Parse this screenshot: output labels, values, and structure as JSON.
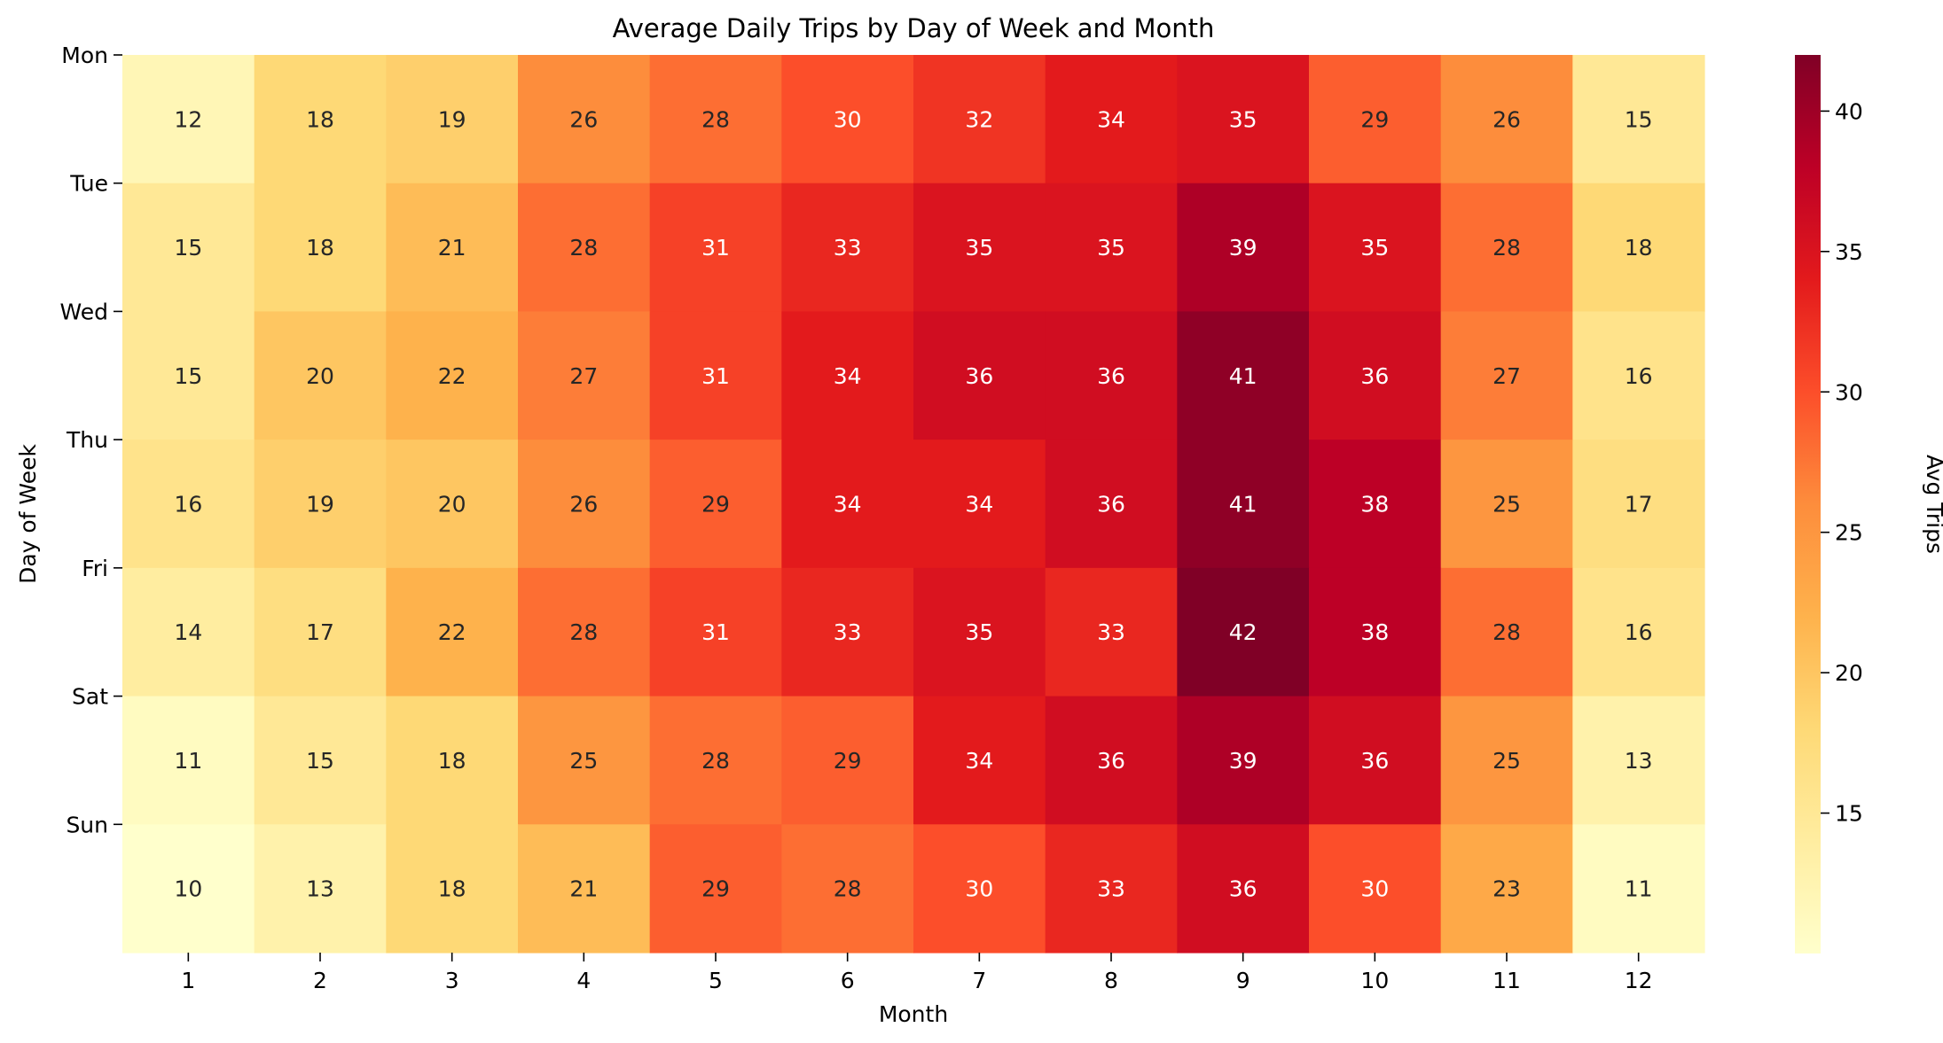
{
  "chart_data": {
    "type": "heatmap",
    "title": "Average Daily Trips by Day of Week and Month",
    "xlabel": "Month",
    "ylabel": "Day of Week",
    "x": [
      "1",
      "2",
      "3",
      "4",
      "5",
      "6",
      "7",
      "8",
      "9",
      "10",
      "11",
      "12"
    ],
    "y": [
      "Mon",
      "Tue",
      "Wed",
      "Thu",
      "Fri",
      "Sat",
      "Sun"
    ],
    "values": [
      [
        12,
        18,
        19,
        26,
        28,
        30,
        32,
        34,
        35,
        29,
        26,
        15
      ],
      [
        15,
        18,
        21,
        28,
        31,
        33,
        35,
        35,
        39,
        35,
        28,
        18
      ],
      [
        15,
        20,
        22,
        27,
        31,
        34,
        36,
        36,
        41,
        36,
        27,
        16
      ],
      [
        16,
        19,
        20,
        26,
        29,
        34,
        34,
        36,
        41,
        38,
        25,
        17
      ],
      [
        14,
        17,
        22,
        28,
        31,
        33,
        35,
        33,
        42,
        38,
        28,
        16
      ],
      [
        11,
        15,
        18,
        25,
        28,
        29,
        34,
        36,
        39,
        36,
        25,
        13
      ],
      [
        10,
        13,
        18,
        21,
        29,
        28,
        30,
        33,
        36,
        30,
        23,
        11
      ]
    ],
    "colormap": "YlOrRd",
    "colorbar": {
      "label": "Avg Trips",
      "range": [
        10,
        42
      ],
      "ticks": [
        "15",
        "20",
        "25",
        "30",
        "35",
        "40"
      ]
    },
    "annotations": true,
    "grid": false,
    "colors": {
      "low": "#ffffcc",
      "high": "#800026",
      "annotation_dark": "#262626",
      "annotation_light": "#ffffff"
    }
  }
}
